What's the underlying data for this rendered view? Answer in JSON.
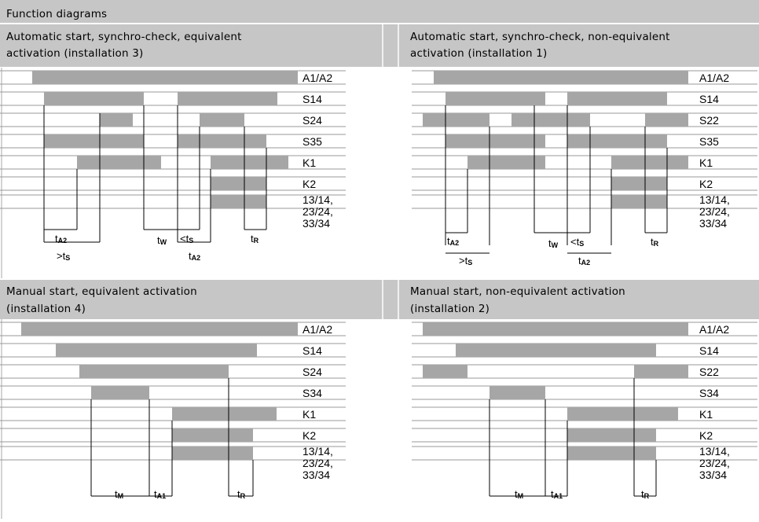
{
  "title": "Function diagrams",
  "diagrams": [
    {
      "title_lines": [
        "Automatic start, synchro-check, equivalent",
        "activation (installation 3)"
      ],
      "signals": [
        "A1/A2",
        "S14",
        "S24",
        "S35",
        "K1",
        "K2",
        "13/14,",
        "23/24,",
        "33/34"
      ],
      "timing_labels": [
        {
          "main": "t",
          "sub": "A2"
        },
        {
          "main": "t",
          "sub": "W"
        },
        {
          "main": "<t",
          "sub": "S"
        },
        {
          "main": "t",
          "sub": "R"
        },
        {
          "main": ">t",
          "sub": "S"
        },
        {
          "main": "t",
          "sub": "A2"
        }
      ]
    },
    {
      "title_lines": [
        "Automatic start, synchro-check, non-equivalent",
        "activation (installation 1)"
      ],
      "signals": [
        "A1/A2",
        "S14",
        "S22",
        "S35",
        "K1",
        "K2",
        "13/14,",
        "23/24,",
        "33/34"
      ],
      "timing_labels": [
        {
          "main": "t",
          "sub": "A2"
        },
        {
          "main": "t",
          "sub": "W"
        },
        {
          "main": "<t",
          "sub": "S"
        },
        {
          "main": "t",
          "sub": "R"
        },
        {
          "main": ">t",
          "sub": "S"
        },
        {
          "main": "t",
          "sub": "A2"
        }
      ]
    },
    {
      "title_lines": [
        "Manual start, equivalent activation",
        "(installation 4)"
      ],
      "signals": [
        "A1/A2",
        "S14",
        "S24",
        "S34",
        "K1",
        "K2",
        "13/14,",
        "23/24,",
        "33/34"
      ],
      "timing_labels": [
        {
          "main": "t",
          "sub": "M"
        },
        {
          "main": "t",
          "sub": "A1"
        },
        {
          "main": "t",
          "sub": "R"
        }
      ]
    },
    {
      "title_lines": [
        "Manual start, non-equivalent activation",
        "(installation 2)"
      ],
      "signals": [
        "A1/A2",
        "S14",
        "S22",
        "S34",
        "K1",
        "K2",
        "13/14,",
        "23/24,",
        "33/34"
      ],
      "timing_labels": [
        {
          "main": "t",
          "sub": "M"
        },
        {
          "main": "t",
          "sub": "A1"
        },
        {
          "main": "t",
          "sub": "R"
        }
      ]
    }
  ],
  "colors": {
    "header_bg": "#c6c6c6",
    "bar": "#a6a6a6",
    "line": "#9a9a9a",
    "text": "#000000"
  }
}
